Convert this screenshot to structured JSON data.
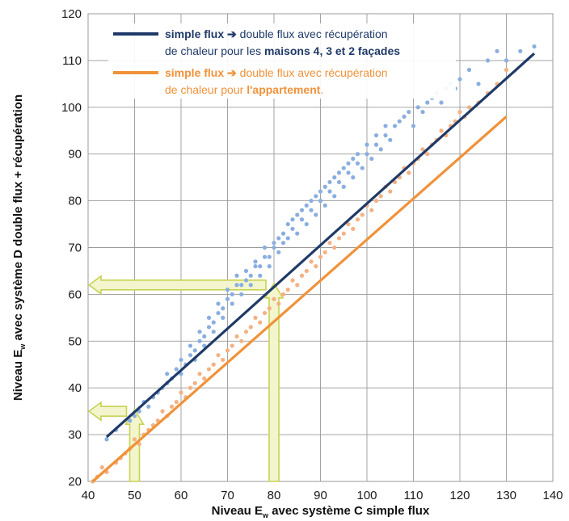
{
  "chart_data": {
    "type": "scatter",
    "xlabel": {
      "pre": "Niveau E",
      "sub": "w",
      "post": " avec système C simple flux"
    },
    "ylabel": {
      "pre": "Niveau E",
      "sub": "w",
      "post": " avec système D double flux + récupération"
    },
    "xlim": [
      40,
      140
    ],
    "ylim": [
      20,
      120
    ],
    "xticks": [
      "40",
      "50",
      "60",
      "70",
      "80",
      "90",
      "100",
      "110",
      "120",
      "130",
      "140"
    ],
    "yticks": [
      "20",
      "30",
      "40",
      "50",
      "60",
      "70",
      "80",
      "90",
      "100",
      "110",
      "120"
    ],
    "grid": true,
    "legend": {
      "position": "top-left",
      "entries": [
        {
          "color": "#1f3a68",
          "line1": [
            {
              "t": "simple flux ",
              "b": true,
              "c": "#1f3a68"
            },
            {
              "t": "➔",
              "b": true,
              "c": "#1f3a68"
            },
            {
              "t": " double flux avec récupération",
              "b": false,
              "c": "#1f3a68"
            }
          ],
          "line2": [
            {
              "t": "de chaleur pour les ",
              "b": false,
              "c": "#1f3a68"
            },
            {
              "t": "maisons 4, 3 et 2 façades",
              "b": true,
              "c": "#1f3a68"
            }
          ]
        },
        {
          "color": "#f0923a",
          "line1": [
            {
              "t": "simple flux ",
              "b": true,
              "c": "#f0923a"
            },
            {
              "t": "➔",
              "b": true,
              "c": "#f0923a"
            },
            {
              "t": " double flux avec récupération",
              "b": false,
              "c": "#f0923a"
            }
          ],
          "line2": [
            {
              "t": "de chaleur pour ",
              "b": false,
              "c": "#f0923a"
            },
            {
              "t": "l'appartement",
              "b": true,
              "c": "#f0923a"
            },
            {
              "t": ".",
              "b": false,
              "c": "#f0923a"
            }
          ]
        }
      ]
    },
    "series": [
      {
        "name": "maisons 4, 3 et 2 façades",
        "point_color": "#8aaee0",
        "line_color": "#1f3a68",
        "fit": [
          [
            44,
            29.5
          ],
          [
            136,
            111.5
          ]
        ],
        "scatter": [
          [
            44,
            29
          ],
          [
            46,
            31
          ],
          [
            49,
            33
          ],
          [
            50,
            34
          ],
          [
            51,
            35
          ],
          [
            52,
            37
          ],
          [
            53,
            36
          ],
          [
            54,
            38
          ],
          [
            55,
            39
          ],
          [
            56,
            40
          ],
          [
            57,
            41
          ],
          [
            57,
            43
          ],
          [
            58,
            42
          ],
          [
            59,
            44
          ],
          [
            60,
            43
          ],
          [
            60,
            46
          ],
          [
            61,
            45
          ],
          [
            62,
            47
          ],
          [
            62,
            49
          ],
          [
            63,
            46
          ],
          [
            63,
            48
          ],
          [
            64,
            50
          ],
          [
            64,
            52
          ],
          [
            65,
            49
          ],
          [
            65,
            51
          ],
          [
            66,
            53
          ],
          [
            66,
            55
          ],
          [
            67,
            52
          ],
          [
            67,
            54
          ],
          [
            68,
            56
          ],
          [
            68,
            58
          ],
          [
            69,
            55
          ],
          [
            69,
            57
          ],
          [
            70,
            59
          ],
          [
            70,
            61
          ],
          [
            71,
            58
          ],
          [
            71,
            60
          ],
          [
            72,
            62
          ],
          [
            72,
            64
          ],
          [
            73,
            60
          ],
          [
            73,
            62
          ],
          [
            74,
            63
          ],
          [
            74,
            65
          ],
          [
            75,
            62
          ],
          [
            75,
            64
          ],
          [
            76,
            66
          ],
          [
            76,
            67
          ],
          [
            77,
            64
          ],
          [
            77,
            66
          ],
          [
            78,
            68
          ],
          [
            78,
            70
          ],
          [
            79,
            66
          ],
          [
            79,
            68
          ],
          [
            80,
            70
          ],
          [
            80,
            71
          ],
          [
            81,
            69
          ],
          [
            81,
            72
          ],
          [
            82,
            73
          ],
          [
            82,
            71
          ],
          [
            83,
            72
          ],
          [
            83,
            75
          ],
          [
            84,
            74
          ],
          [
            84,
            76
          ],
          [
            85,
            73
          ],
          [
            85,
            77
          ],
          [
            86,
            76
          ],
          [
            86,
            78
          ],
          [
            87,
            75
          ],
          [
            87,
            79
          ],
          [
            88,
            78
          ],
          [
            88,
            80
          ],
          [
            89,
            77
          ],
          [
            89,
            81
          ],
          [
            90,
            80
          ],
          [
            90,
            82
          ],
          [
            91,
            79
          ],
          [
            91,
            83
          ],
          [
            92,
            82
          ],
          [
            92,
            84
          ],
          [
            93,
            81
          ],
          [
            93,
            85
          ],
          [
            94,
            84
          ],
          [
            94,
            86
          ],
          [
            95,
            83
          ],
          [
            95,
            87
          ],
          [
            96,
            86
          ],
          [
            96,
            88
          ],
          [
            97,
            85
          ],
          [
            97,
            89
          ],
          [
            98,
            88
          ],
          [
            98,
            90
          ],
          [
            99,
            87
          ],
          [
            100,
            90
          ],
          [
            100,
            92
          ],
          [
            101,
            89
          ],
          [
            102,
            92
          ],
          [
            102,
            94
          ],
          [
            103,
            91
          ],
          [
            104,
            94
          ],
          [
            104,
            96
          ],
          [
            105,
            93
          ],
          [
            106,
            96
          ],
          [
            107,
            97
          ],
          [
            108,
            98
          ],
          [
            109,
            99
          ],
          [
            110,
            96
          ],
          [
            111,
            100
          ],
          [
            112,
            99
          ],
          [
            113,
            101
          ],
          [
            114,
            102
          ],
          [
            115,
            103
          ],
          [
            116,
            101
          ],
          [
            117,
            104
          ],
          [
            118,
            105
          ],
          [
            119,
            104
          ],
          [
            120,
            106
          ],
          [
            122,
            108
          ],
          [
            124,
            105
          ],
          [
            126,
            110
          ],
          [
            128,
            112
          ],
          [
            130,
            110
          ],
          [
            133,
            112
          ],
          [
            136,
            113
          ]
        ]
      },
      {
        "name": "appartement",
        "point_color": "#f4b183",
        "line_color": "#f0923a",
        "fit": [
          [
            41,
            20
          ],
          [
            130,
            98
          ]
        ],
        "scatter": [
          [
            41,
            20
          ],
          [
            42,
            21
          ],
          [
            43,
            23
          ],
          [
            44,
            22
          ],
          [
            46,
            24
          ],
          [
            47,
            25
          ],
          [
            48,
            26
          ],
          [
            49,
            27
          ],
          [
            50,
            29
          ],
          [
            51,
            28
          ],
          [
            52,
            30
          ],
          [
            53,
            31
          ],
          [
            54,
            32
          ],
          [
            55,
            33
          ],
          [
            56,
            35
          ],
          [
            57,
            34
          ],
          [
            58,
            36
          ],
          [
            59,
            37
          ],
          [
            60,
            39
          ],
          [
            61,
            38
          ],
          [
            62,
            40
          ],
          [
            63,
            41
          ],
          [
            64,
            43
          ],
          [
            65,
            42
          ],
          [
            66,
            44
          ],
          [
            67,
            45
          ],
          [
            68,
            47
          ],
          [
            69,
            46
          ],
          [
            70,
            48
          ],
          [
            71,
            49
          ],
          [
            72,
            51
          ],
          [
            73,
            50
          ],
          [
            74,
            52
          ],
          [
            75,
            53
          ],
          [
            76,
            55
          ],
          [
            77,
            54
          ],
          [
            78,
            56
          ],
          [
            79,
            57
          ],
          [
            80,
            59
          ],
          [
            81,
            58
          ],
          [
            82,
            60
          ],
          [
            83,
            61
          ],
          [
            84,
            63
          ],
          [
            85,
            62
          ],
          [
            86,
            64
          ],
          [
            87,
            65
          ],
          [
            88,
            67
          ],
          [
            89,
            66
          ],
          [
            90,
            68
          ],
          [
            91,
            69
          ],
          [
            92,
            71
          ],
          [
            93,
            70
          ],
          [
            94,
            72
          ],
          [
            95,
            73
          ],
          [
            96,
            75
          ],
          [
            97,
            74
          ],
          [
            98,
            76
          ],
          [
            99,
            77
          ],
          [
            100,
            79
          ],
          [
            101,
            78
          ],
          [
            102,
            80
          ],
          [
            103,
            81
          ],
          [
            104,
            83
          ],
          [
            105,
            82
          ],
          [
            106,
            84
          ],
          [
            107,
            85
          ],
          [
            108,
            87
          ],
          [
            109,
            86
          ],
          [
            110,
            88
          ],
          [
            111,
            89
          ],
          [
            112,
            91
          ],
          [
            113,
            90
          ],
          [
            114,
            92
          ],
          [
            115,
            93
          ],
          [
            116,
            95
          ],
          [
            117,
            94
          ],
          [
            118,
            96
          ],
          [
            119,
            97
          ],
          [
            120,
            99
          ],
          [
            121,
            98
          ],
          [
            122,
            100
          ],
          [
            124,
            101
          ],
          [
            126,
            103
          ],
          [
            128,
            105
          ],
          [
            130,
            108
          ]
        ]
      }
    ],
    "annotations": {
      "arrow_color": "#c8d254",
      "arrow_fill": "#f3f5cc",
      "reads": [
        {
          "x": 50,
          "y": 35
        },
        {
          "x": 80,
          "y": 62
        }
      ]
    }
  }
}
